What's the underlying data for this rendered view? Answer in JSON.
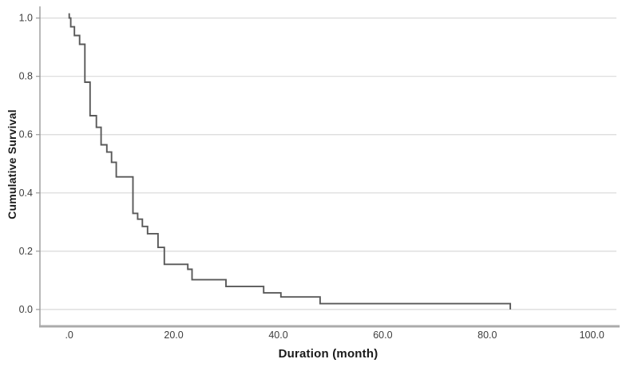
{
  "chart_data": {
    "type": "line",
    "subtype": "kaplan-meier-survival-step-curve",
    "title": "",
    "xlabel": "Duration (month)",
    "ylabel": "Cumulative Survival",
    "x_ticks": [
      0,
      20,
      40,
      60,
      80,
      100
    ],
    "x_tick_labels": [
      ".0",
      "20.0",
      "40.0",
      "60.0",
      "80.0",
      "100.0"
    ],
    "y_ticks": [
      0.0,
      0.2,
      0.4,
      0.6,
      0.8,
      1.0
    ],
    "y_tick_labels": [
      "0.0",
      "0.2",
      "0.4",
      "0.6",
      "0.8",
      "1.0"
    ],
    "xlim": [
      -5.6,
      104.7
    ],
    "ylim": [
      -0.055,
      1.04
    ],
    "grid": "horizontal-only",
    "legend": "none",
    "colors": {
      "line": "#595959",
      "grid": "#d9d9d9",
      "y_axis": "#999999",
      "baseline": "#ababab",
      "tick_text": "#3d3d3d",
      "title_text": "#1a1a1a",
      "background": "#ffffff"
    },
    "series": [
      {
        "name": "Cumulative Survival",
        "step_mode": "post",
        "start": [
          0,
          1.0
        ],
        "points": [
          [
            0.3,
            0.97
          ],
          [
            1.0,
            0.94
          ],
          [
            2.0,
            0.91
          ],
          [
            3.0,
            0.78
          ],
          [
            4.0,
            0.665
          ],
          [
            5.2,
            0.625
          ],
          [
            6.1,
            0.565
          ],
          [
            7.2,
            0.54
          ],
          [
            8.1,
            0.505
          ],
          [
            9.0,
            0.455
          ],
          [
            12.2,
            0.33
          ],
          [
            13.1,
            0.31
          ],
          [
            14.0,
            0.285
          ],
          [
            15.0,
            0.26
          ],
          [
            17.0,
            0.213
          ],
          [
            18.2,
            0.155
          ],
          [
            22.7,
            0.138
          ],
          [
            23.5,
            0.102
          ],
          [
            30.0,
            0.079
          ],
          [
            37.2,
            0.057
          ],
          [
            40.5,
            0.043
          ],
          [
            48.0,
            0.02
          ],
          [
            84.4,
            0.0
          ]
        ]
      }
    ]
  }
}
